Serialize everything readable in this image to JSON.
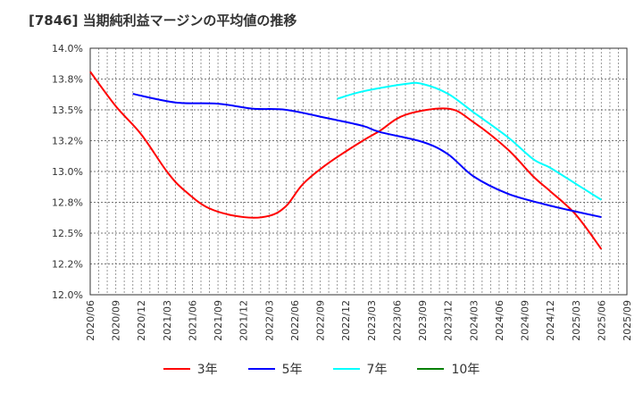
{
  "title": "[7846]  当期純利益マージンの平均値の推移",
  "chart_data": {
    "type": "line",
    "title": "[7846]  当期純利益マージンの平均値の推移",
    "xlabel": "",
    "ylabel": "",
    "ylim": [
      12.0,
      14.0
    ],
    "yticks": [
      12.0,
      12.25,
      12.5,
      12.75,
      13.0,
      13.25,
      13.5,
      13.75,
      14.0
    ],
    "ytick_labels": [
      "12.0%",
      "12.2%",
      "12.5%",
      "12.8%",
      "13.0%",
      "13.2%",
      "13.5%",
      "13.8%",
      "14.0%"
    ],
    "xlim": [
      "2020/06",
      "2025/09"
    ],
    "xtick_labels": [
      "2020/06",
      "2020/09",
      "2020/12",
      "2021/03",
      "2021/06",
      "2021/09",
      "2021/12",
      "2022/03",
      "2022/06",
      "2022/09",
      "2022/12",
      "2023/03",
      "2023/06",
      "2023/09",
      "2023/12",
      "2024/03",
      "2024/06",
      "2024/09",
      "2024/12",
      "2025/03",
      "2025/06",
      "2025/09"
    ],
    "grid": true,
    "legend_position": "bottom",
    "series": [
      {
        "name": "3年",
        "color": "#ff0000",
        "points": [
          [
            "2020/06",
            13.81
          ],
          [
            "2020/09",
            13.53
          ],
          [
            "2020/12",
            13.3
          ],
          [
            "2021/03",
            13.0
          ],
          [
            "2021/05",
            12.85
          ],
          [
            "2021/08",
            12.7
          ],
          [
            "2021/12",
            12.63
          ],
          [
            "2022/03",
            12.64
          ],
          [
            "2022/05",
            12.72
          ],
          [
            "2022/07",
            12.9
          ],
          [
            "2022/10",
            13.07
          ],
          [
            "2023/02",
            13.25
          ],
          [
            "2023/04",
            13.33
          ],
          [
            "2023/07",
            13.46
          ],
          [
            "2023/12",
            13.51
          ],
          [
            "2024/03",
            13.4
          ],
          [
            "2024/07",
            13.18
          ],
          [
            "2024/10",
            12.96
          ],
          [
            "2024/12",
            12.84
          ],
          [
            "2025/03",
            12.65
          ],
          [
            "2025/06",
            12.37
          ]
        ]
      },
      {
        "name": "5年",
        "color": "#0000ff",
        "points": [
          [
            "2020/11",
            13.63
          ],
          [
            "2021/04",
            13.56
          ],
          [
            "2021/09",
            13.55
          ],
          [
            "2022/01",
            13.51
          ],
          [
            "2022/05",
            13.5
          ],
          [
            "2022/10",
            13.43
          ],
          [
            "2023/02",
            13.37
          ],
          [
            "2023/04",
            13.32
          ],
          [
            "2023/09",
            13.24
          ],
          [
            "2023/12",
            13.14
          ],
          [
            "2024/03",
            12.96
          ],
          [
            "2024/07",
            12.82
          ],
          [
            "2024/11",
            12.74
          ],
          [
            "2025/02",
            12.69
          ],
          [
            "2025/06",
            12.63
          ]
        ]
      },
      {
        "name": "7年",
        "color": "#00ffff",
        "points": [
          [
            "2022/11",
            13.59
          ],
          [
            "2023/02",
            13.65
          ],
          [
            "2023/07",
            13.71
          ],
          [
            "2023/09",
            13.71
          ],
          [
            "2023/12",
            13.63
          ],
          [
            "2024/03",
            13.48
          ],
          [
            "2024/07",
            13.28
          ],
          [
            "2024/10",
            13.1
          ],
          [
            "2024/12",
            13.03
          ],
          [
            "2025/03",
            12.9
          ],
          [
            "2025/06",
            12.77
          ]
        ]
      },
      {
        "name": "10年",
        "color": "#008000",
        "points": []
      }
    ]
  }
}
